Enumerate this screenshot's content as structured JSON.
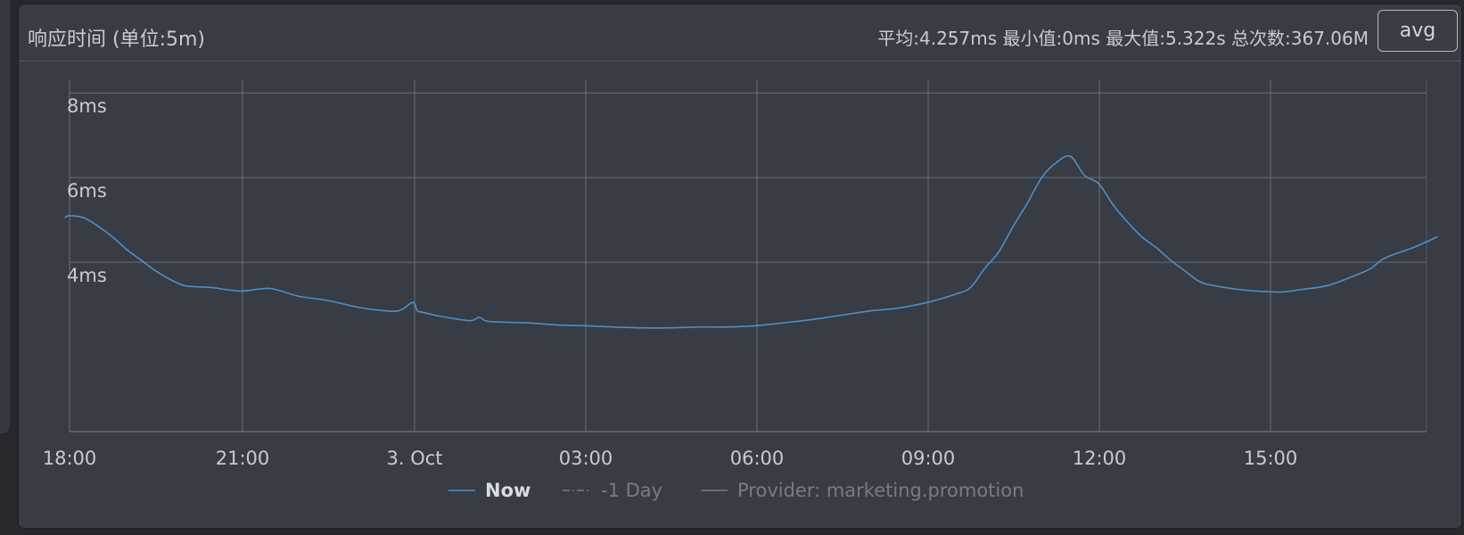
{
  "panel": {
    "title": "响应时间 (单位:5m)",
    "stats": "平均:4.257ms 最小值:0ms 最大值:5.322s 总次数:367.06M",
    "button_label": "avg"
  },
  "colors": {
    "now_series": "#4e8fc6",
    "legend_inactive": "#777b82",
    "grid": "#6a6e76",
    "text": "#c9cbd0"
  },
  "chart_data": {
    "type": "line",
    "title": "",
    "xlabel": "",
    "ylabel": "",
    "ylim": [
      0,
      8.3
    ],
    "x_axis_type": "datetime",
    "xlim": [
      "2 Oct 17:55",
      "3 Oct 17:55"
    ],
    "x_ticks": [
      "18:00",
      "21:00",
      "3. Oct",
      "03:00",
      "06:00",
      "09:00",
      "12:00",
      "15:00"
    ],
    "y_ticks": [
      {
        "value": 8,
        "label": "8ms"
      },
      {
        "value": 6,
        "label": "6ms"
      },
      {
        "value": 4,
        "label": "4ms"
      }
    ],
    "legend": [
      {
        "name": "Now",
        "style": "solid",
        "active": true
      },
      {
        "name": "-1 Day",
        "style": "dash-dot",
        "active": false
      },
      {
        "name": "Provider: marketing.promotion",
        "style": "solid",
        "active": false
      }
    ],
    "legend_position": "bottom-center",
    "grid": true,
    "series": [
      {
        "name": "Now",
        "x": [
          "2 Oct 17:55",
          "2 Oct 18:00",
          "2 Oct 18:15",
          "2 Oct 18:30",
          "2 Oct 18:45",
          "2 Oct 19:00",
          "2 Oct 19:15",
          "2 Oct 19:30",
          "2 Oct 19:45",
          "2 Oct 20:00",
          "2 Oct 20:15",
          "2 Oct 20:30",
          "2 Oct 21:00",
          "2 Oct 21:30",
          "2 Oct 22:00",
          "2 Oct 22:30",
          "2 Oct 23:00",
          "2 Oct 23:20",
          "2 Oct 23:45",
          "3 Oct 00:00",
          "3 Oct 00:05",
          "3 Oct 00:10",
          "3 Oct 00:30",
          "3 Oct 01:00",
          "3 Oct 01:10",
          "3 Oct 01:20",
          "3 Oct 02:00",
          "3 Oct 02:30",
          "3 Oct 03:00",
          "3 Oct 03:30",
          "3 Oct 04:00",
          "3 Oct 04:30",
          "3 Oct 05:00",
          "3 Oct 05:30",
          "3 Oct 06:00",
          "3 Oct 06:30",
          "3 Oct 07:00",
          "3 Oct 07:30",
          "3 Oct 08:00",
          "3 Oct 08:30",
          "3 Oct 09:00",
          "3 Oct 09:30",
          "3 Oct 09:45",
          "3 Oct 10:00",
          "3 Oct 10:15",
          "3 Oct 10:30",
          "3 Oct 10:45",
          "3 Oct 11:00",
          "3 Oct 11:15",
          "3 Oct 11:30",
          "3 Oct 11:45",
          "3 Oct 12:00",
          "3 Oct 12:15",
          "3 Oct 12:30",
          "3 Oct 12:45",
          "3 Oct 13:00",
          "3 Oct 13:15",
          "3 Oct 13:30",
          "3 Oct 13:45",
          "3 Oct 14:00",
          "3 Oct 14:30",
          "3 Oct 15:00",
          "3 Oct 15:15",
          "3 Oct 15:30",
          "3 Oct 16:00",
          "3 Oct 16:30",
          "3 Oct 16:45",
          "3 Oct 17:00",
          "3 Oct 17:30",
          "3 Oct 17:55"
        ],
        "values": [
          5.05,
          5.1,
          5.05,
          4.85,
          4.6,
          4.3,
          4.05,
          3.8,
          3.6,
          3.45,
          3.42,
          3.4,
          3.32,
          3.38,
          3.2,
          3.1,
          2.95,
          2.88,
          2.85,
          3.05,
          2.85,
          2.82,
          2.72,
          2.62,
          2.7,
          2.6,
          2.57,
          2.52,
          2.5,
          2.47,
          2.45,
          2.45,
          2.47,
          2.47,
          2.5,
          2.57,
          2.65,
          2.75,
          2.85,
          2.92,
          3.05,
          3.25,
          3.4,
          3.85,
          4.25,
          4.85,
          5.4,
          6.0,
          6.35,
          6.5,
          6.05,
          5.85,
          5.35,
          4.95,
          4.6,
          4.35,
          4.05,
          3.8,
          3.55,
          3.45,
          3.35,
          3.3,
          3.3,
          3.35,
          3.45,
          3.7,
          3.85,
          4.1,
          4.35,
          4.6
        ]
      }
    ]
  }
}
